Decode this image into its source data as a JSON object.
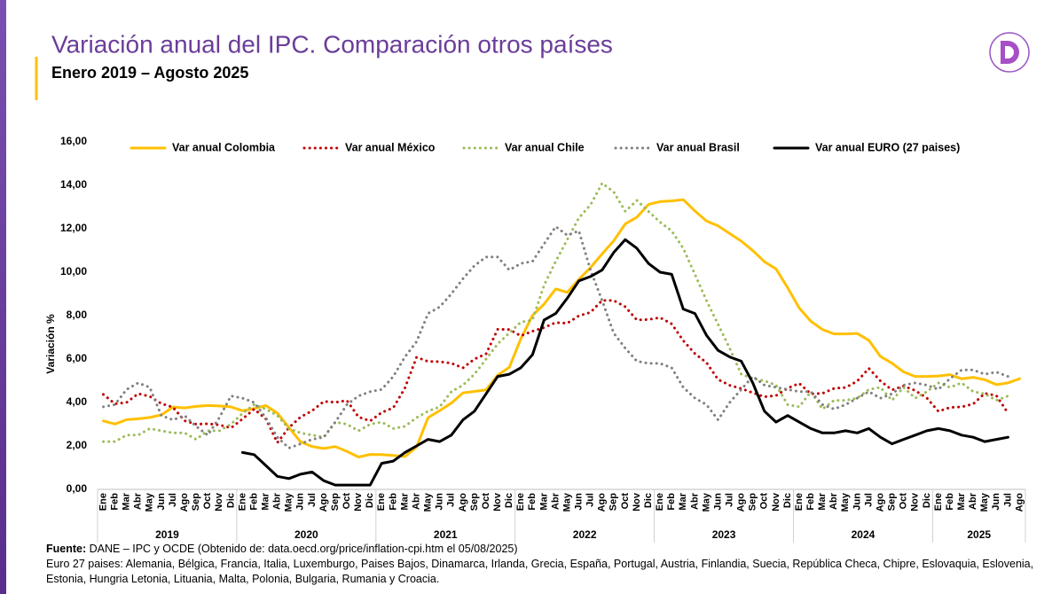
{
  "chart_data": {
    "type": "line",
    "title": "Variación anual del IPC. Comparación otros países",
    "subtitle": "Enero 2019 – Agosto 2025",
    "y_label": "Variación %",
    "categories": [
      "Ene",
      "Feb",
      "Mar",
      "Abr",
      "May",
      "Jun",
      "Jul",
      "Ago",
      "Sep",
      "Oct",
      "Nov",
      "Dic",
      "Ene",
      "Feb",
      "Mar",
      "Abr",
      "May",
      "Jun",
      "Jul",
      "Ago",
      "Sep",
      "Oct",
      "Nov",
      "Dic",
      "Ene",
      "Feb",
      "Mar",
      "Abr",
      "May",
      "Jun",
      "Jul",
      "Ago",
      "Sep",
      "Oct",
      "Nov",
      "Dic",
      "Ene",
      "Feb",
      "Mar",
      "Abr",
      "May",
      "Jun",
      "Jul",
      "Ago",
      "Sep",
      "Oct",
      "Nov",
      "Dic",
      "Ene",
      "Feb",
      "Mar",
      "Abr",
      "May",
      "Jun",
      "Jul",
      "Ago",
      "Sep",
      "Oct",
      "Nov",
      "Dic",
      "Ene",
      "Feb",
      "Mar",
      "Abr",
      "May",
      "Jun",
      "Jul",
      "Ago",
      "Sep",
      "Oct",
      "Nov",
      "Dic",
      "Ene",
      "Feb",
      "Mar",
      "Abr",
      "May",
      "Jun",
      "Jul",
      "Ago"
    ],
    "years": [
      "2019",
      "2020",
      "2021",
      "2022",
      "2023",
      "2024",
      "2025"
    ],
    "ylim": [
      0,
      16
    ],
    "yticks": [
      {
        "value": 0,
        "label": "0,00"
      },
      {
        "value": 2,
        "label": "2,00"
      },
      {
        "value": 4,
        "label": "4,00"
      },
      {
        "value": 6,
        "label": "6,00"
      },
      {
        "value": 8,
        "label": "8,00"
      },
      {
        "value": 10,
        "label": "10,00"
      },
      {
        "value": 12,
        "label": "12,00"
      },
      {
        "value": 14,
        "label": "14,00"
      },
      {
        "value": 16,
        "label": "16,00"
      }
    ],
    "grid": false,
    "series": [
      {
        "name": "Var anual Colombia",
        "color": "#FFC000",
        "dash": "solid",
        "values": [
          3.15,
          3.01,
          3.21,
          3.25,
          3.31,
          3.43,
          3.79,
          3.75,
          3.82,
          3.86,
          3.84,
          3.8,
          3.62,
          3.72,
          3.86,
          3.51,
          2.85,
          2.19,
          1.97,
          1.88,
          1.97,
          1.75,
          1.49,
          1.61,
          1.6,
          1.56,
          1.51,
          1.95,
          3.3,
          3.63,
          3.97,
          4.44,
          4.51,
          4.58,
          5.26,
          5.62,
          6.94,
          8.01,
          8.53,
          9.23,
          9.07,
          9.67,
          10.21,
          10.84,
          11.44,
          12.22,
          12.53,
          13.12,
          13.25,
          13.28,
          13.34,
          12.82,
          12.36,
          12.13,
          11.78,
          11.43,
          10.99,
          10.48,
          10.15,
          9.28,
          8.35,
          7.74,
          7.36,
          7.16,
          7.16,
          7.18,
          6.86,
          6.12,
          5.81,
          5.41,
          5.2,
          5.2,
          5.22,
          5.28,
          5.09,
          5.16,
          5.05,
          4.82,
          4.9,
          5.1
        ]
      },
      {
        "name": "Var anual México",
        "color": "#C00000",
        "dash": "dotted",
        "values": [
          4.37,
          3.94,
          4.0,
          4.41,
          4.28,
          3.95,
          3.78,
          3.16,
          3.0,
          3.02,
          2.97,
          2.83,
          3.24,
          3.7,
          3.25,
          2.15,
          2.84,
          3.33,
          3.62,
          4.05,
          4.01,
          4.09,
          3.33,
          3.15,
          3.54,
          3.76,
          4.67,
          6.08,
          5.89,
          5.88,
          5.81,
          5.59,
          6.0,
          6.24,
          7.37,
          7.36,
          7.07,
          7.28,
          7.45,
          7.68,
          7.65,
          7.99,
          8.15,
          8.7,
          8.7,
          8.41,
          7.8,
          7.82,
          7.91,
          7.62,
          6.85,
          6.25,
          5.84,
          5.06,
          4.79,
          4.64,
          4.45,
          4.26,
          4.32,
          4.66,
          4.88,
          4.4,
          4.42,
          4.65,
          4.69,
          4.98,
          5.57,
          4.99,
          4.58,
          4.76,
          4.55,
          4.21,
          3.59,
          3.77,
          3.8,
          3.93,
          4.42,
          4.32,
          3.51,
          null
        ]
      },
      {
        "name": "Var anual Chile",
        "color": "#9BBB59",
        "dash": "dotted",
        "values": [
          2.2,
          2.2,
          2.5,
          2.5,
          2.8,
          2.7,
          2.6,
          2.6,
          2.3,
          2.7,
          2.7,
          3.0,
          3.5,
          3.9,
          3.7,
          3.4,
          2.8,
          2.6,
          2.5,
          2.4,
          3.1,
          3.0,
          2.7,
          3.0,
          3.1,
          2.8,
          2.9,
          3.3,
          3.6,
          3.8,
          4.5,
          4.8,
          5.3,
          6.0,
          6.7,
          7.2,
          7.7,
          7.8,
          9.4,
          10.5,
          11.5,
          12.5,
          13.1,
          14.1,
          13.7,
          12.8,
          13.3,
          12.8,
          12.3,
          11.9,
          11.1,
          9.9,
          8.7,
          7.6,
          6.5,
          5.3,
          5.1,
          5.0,
          4.8,
          3.9,
          3.8,
          4.5,
          3.7,
          4.1,
          4.1,
          4.2,
          4.6,
          4.7,
          4.1,
          4.7,
          4.2,
          4.5,
          4.9,
          4.7,
          4.9,
          4.5,
          4.4,
          4.1,
          4.3,
          null
        ]
      },
      {
        "name": "Var anual Brasil",
        "color": "#808080",
        "dash": "dotted",
        "values": [
          3.8,
          3.9,
          4.6,
          4.9,
          4.7,
          3.4,
          3.2,
          3.4,
          2.9,
          2.5,
          3.3,
          4.3,
          4.2,
          4.0,
          3.3,
          2.4,
          1.9,
          2.1,
          2.3,
          2.4,
          3.1,
          3.9,
          4.3,
          4.5,
          4.6,
          5.2,
          6.1,
          6.8,
          8.1,
          8.4,
          9.0,
          9.7,
          10.3,
          10.7,
          10.7,
          10.1,
          10.4,
          10.5,
          11.3,
          12.1,
          11.7,
          11.9,
          10.1,
          8.7,
          7.2,
          6.5,
          5.9,
          5.8,
          5.8,
          5.6,
          4.7,
          4.2,
          3.9,
          3.2,
          4.0,
          4.6,
          5.2,
          4.8,
          4.7,
          4.6,
          4.5,
          4.5,
          3.9,
          3.7,
          3.9,
          4.2,
          4.5,
          4.2,
          4.4,
          4.8,
          4.9,
          4.8,
          4.6,
          5.1,
          5.5,
          5.5,
          5.3,
          5.4,
          5.2,
          null
        ]
      },
      {
        "name": "Var anual EURO (27 paises)",
        "color": "#000000",
        "dash": "solid",
        "values": [
          null,
          null,
          null,
          null,
          null,
          null,
          null,
          null,
          null,
          null,
          null,
          null,
          1.7,
          1.6,
          1.1,
          0.6,
          0.5,
          0.7,
          0.8,
          0.4,
          0.2,
          0.2,
          0.2,
          0.2,
          1.2,
          1.3,
          1.7,
          2.0,
          2.3,
          2.2,
          2.5,
          3.2,
          3.6,
          4.4,
          5.2,
          5.3,
          5.6,
          6.2,
          7.8,
          8.1,
          8.8,
          9.6,
          9.8,
          10.1,
          10.9,
          11.5,
          11.1,
          10.4,
          10.0,
          9.9,
          8.3,
          8.1,
          7.1,
          6.4,
          6.1,
          5.9,
          4.9,
          3.6,
          3.1,
          3.4,
          3.1,
          2.8,
          2.6,
          2.6,
          2.7,
          2.6,
          2.8,
          2.4,
          2.1,
          2.3,
          2.5,
          2.7,
          2.8,
          2.7,
          2.5,
          2.4,
          2.2,
          2.3,
          2.4,
          null
        ]
      }
    ]
  },
  "notes": {
    "source_label": "Fuente:",
    "source": "DANE – IPC y OCDE (Obtenido de: data.oecd.org/price/inflation-cpi.htm el 05/08/2025)",
    "note": "Euro 27 paises: Alemania, Bélgica, Francia, Italia, Luxemburgo, Paises Bajos, Dinamarca, Irlanda, Grecia, España, Portugal, Austria, Finlandia, Suecia, República Checa, Chipre, Eslovaquia, Eslovenia, Estonia, Hungria Letonia, Lituania, Malta, Polonia, Bulgaria, Rumania y Croacia."
  }
}
